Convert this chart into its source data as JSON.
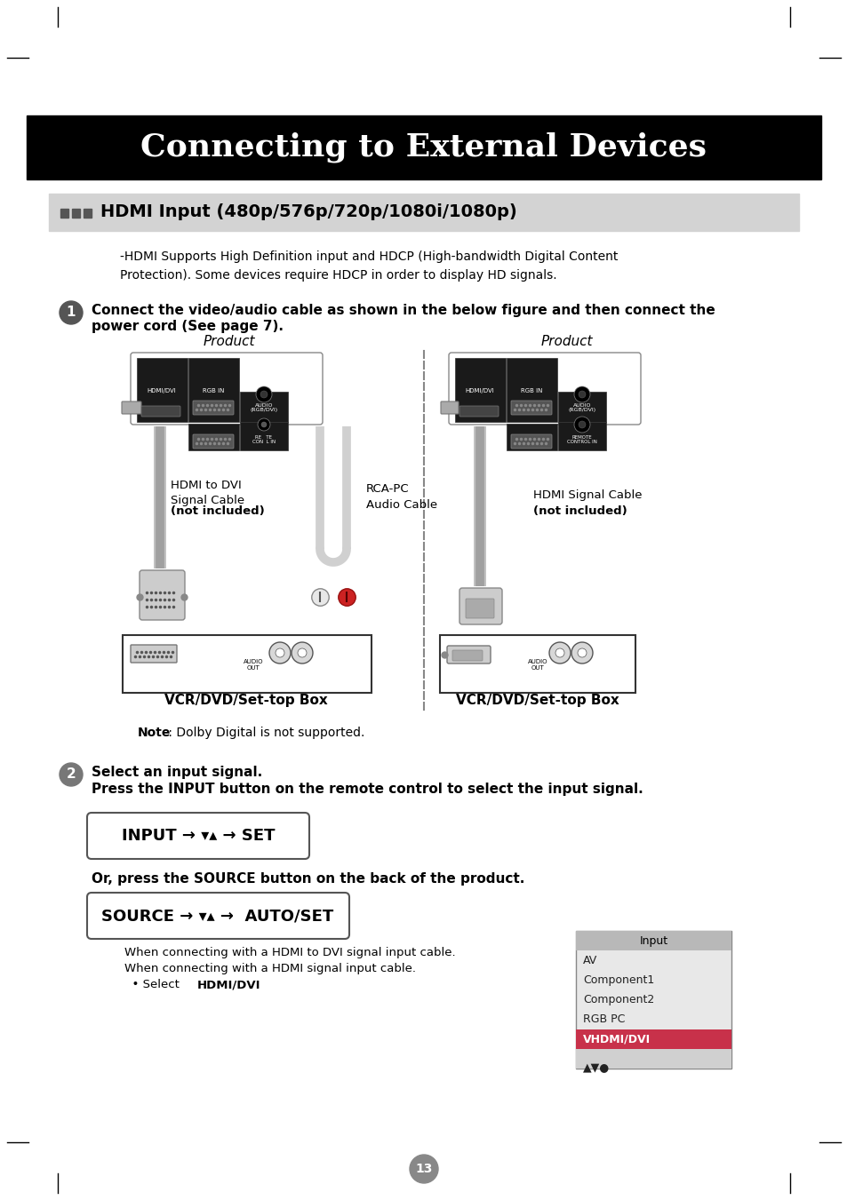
{
  "title": "Connecting to External Devices",
  "section_title": "HDMI Input (480p/576p/720p/1080i/1080p)",
  "bg_color": "#ffffff",
  "title_bg": "#000000",
  "title_color": "#ffffff",
  "section_bg": "#d3d3d3",
  "body_text_1": "-HDMI Supports High Definition input and HDCP (High-bandwidth Digital Content\nProtection). Some devices require HDCP in order to display HD signals.",
  "step1_bold": "Connect the video/audio cable as shown in the below figure and then connect the\npower cord (See page 7).",
  "step2_line1": "Select an input signal.",
  "step2_line2": "Press the INPUT button on the remote control to select the input signal.",
  "source_text": "Or, press the SOURCE button on the back of the product.",
  "note_bold": "Note",
  "note_rest": " : Dolby Digital is not supported.",
  "product_label": "Product",
  "vcr_label": "VCR/DVD/Set-top Box",
  "cable1_line1": "HDMI to DVI",
  "cable1_line2": "Signal Cable",
  "cable1_line3": "(not included)",
  "cable2_line1": "RCA-PC",
  "cable2_line2": "Audio Cable",
  "cable3_line1": "HDMI Signal Cable",
  "cable3_line2": "(not included)",
  "input_box_text": "INPUT → ▾▴ → SET",
  "source_box_text": "SOURCE → ▾▴ →  AUTO/SET",
  "menu_title": "Input",
  "menu_items": [
    "AV",
    "Component1",
    "Component2",
    "RGB PC",
    "VHDMI/DVI"
  ],
  "menu_selected": "VHDMI/DVI",
  "menu_selected_color": "#c8314a",
  "menu_footer": "▲▼●",
  "page_number": "13",
  "connect_text1": "When connecting with a HDMI to DVI signal input cable.",
  "connect_text2": "When connecting with a HDMI signal input cable.",
  "connect_text3_pre": "  • Select ",
  "connect_text3_bold": "HDMI/DVI"
}
